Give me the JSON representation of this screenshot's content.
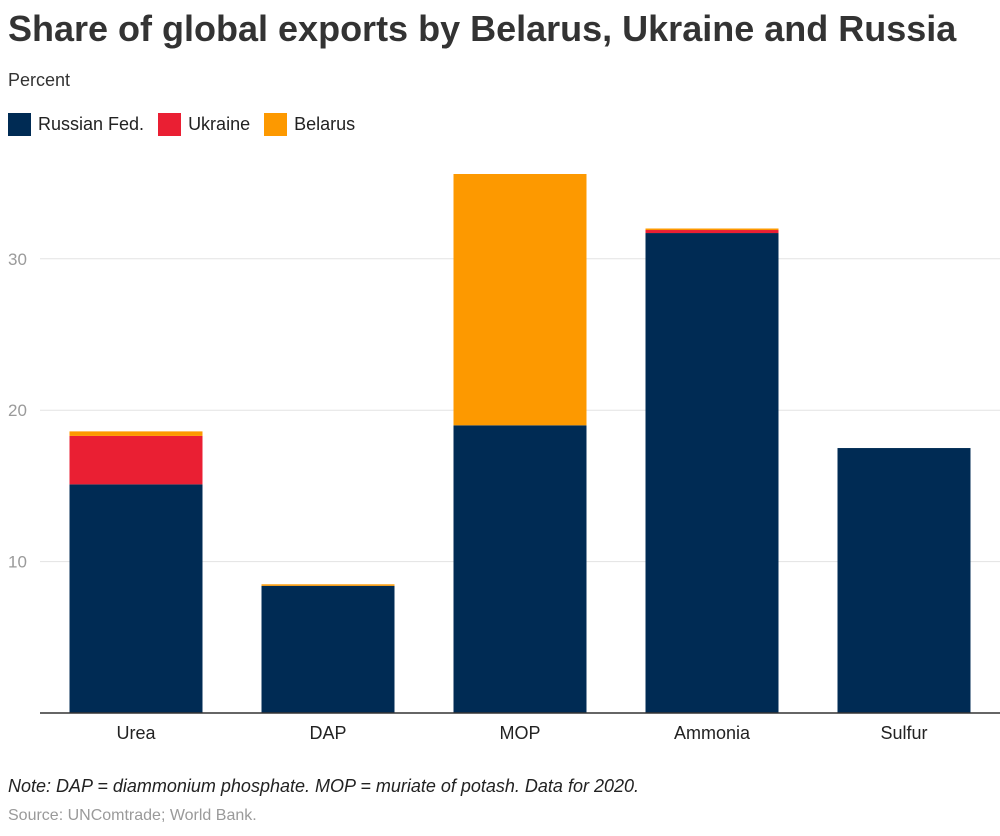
{
  "chart_data": {
    "type": "bar",
    "stacked": true,
    "title": "Share of global exports by Belarus, Ukraine and Russia",
    "subtitle": "Percent",
    "categories": [
      "Urea",
      "DAP",
      "MOP",
      "Ammonia",
      "Sulfur"
    ],
    "series": [
      {
        "name": "Russian Fed.",
        "color": "#002b54",
        "values": [
          15.1,
          8.4,
          19.0,
          31.7,
          17.5
        ]
      },
      {
        "name": "Ukraine",
        "color": "#ea1f33",
        "values": [
          3.2,
          0.0,
          0.0,
          0.2,
          0.0
        ]
      },
      {
        "name": "Belarus",
        "color": "#fd9900",
        "values": [
          0.3,
          0.1,
          16.6,
          0.1,
          0.0
        ]
      }
    ],
    "ylim": [
      0,
      35.6
    ],
    "yticks": [
      10,
      20,
      30
    ],
    "grid": true,
    "legend_position": "top-left",
    "note": "Note: DAP = diammonium phosphate. MOP = muriate of potash. Data for 2020.",
    "source": "Source: UNComtrade; World Bank."
  }
}
